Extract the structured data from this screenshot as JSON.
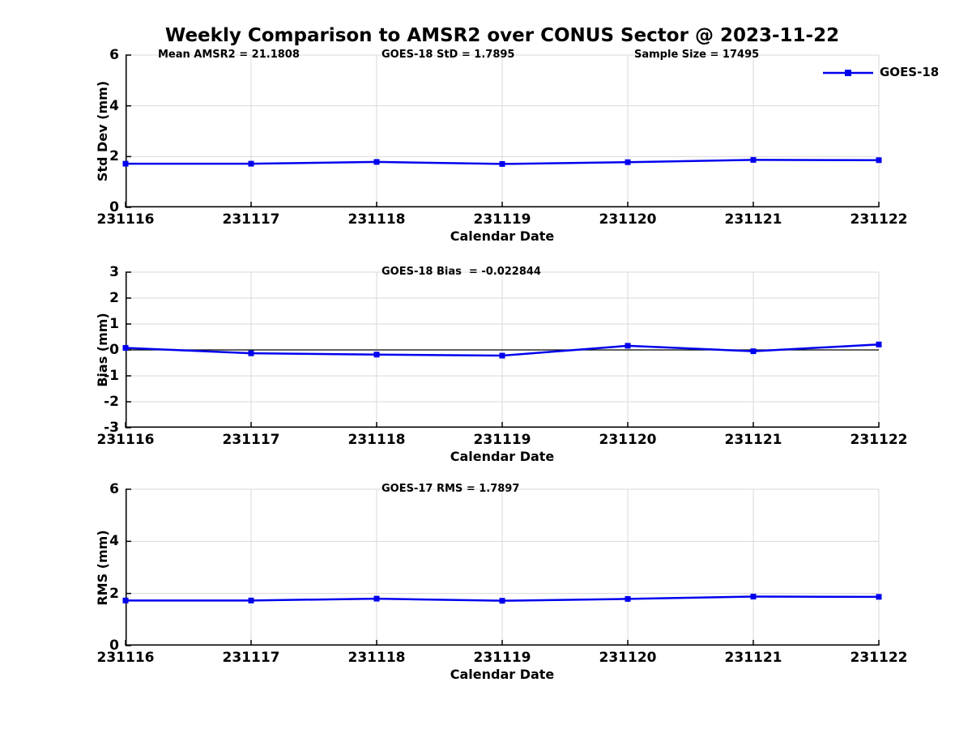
{
  "title": "Weekly Comparison to AMSR2 over CONUS Sector @ 2023-11-22",
  "legend": {
    "label": "GOES-18"
  },
  "colors": {
    "line": "#0000ee",
    "grid": "#d9d9d9",
    "axis": "#000000",
    "text": "#000000"
  },
  "chart_data": [
    {
      "type": "line",
      "name": "std-dev-subplot",
      "x": [
        "231116",
        "231117",
        "231118",
        "231119",
        "231120",
        "231121",
        "231122"
      ],
      "series": [
        {
          "name": "GOES-18",
          "values": [
            1.72,
            1.72,
            1.79,
            1.71,
            1.78,
            1.87,
            1.86
          ]
        }
      ],
      "ylabel": "Std Dev (mm)",
      "xlabel": "Calendar Date",
      "ylim": [
        0,
        6
      ],
      "yticks": [
        0,
        2,
        4,
        6
      ],
      "grid": true,
      "zero_line": false,
      "legend_position": "top-right",
      "annotations": [
        "Mean AMSR2 = 21.1808",
        "GOES-18 StD = 1.7895",
        "Sample Size = 17495"
      ]
    },
    {
      "type": "line",
      "name": "bias-subplot",
      "x": [
        "231116",
        "231117",
        "231118",
        "231119",
        "231120",
        "231121",
        "231122"
      ],
      "series": [
        {
          "name": "GOES-18",
          "values": [
            0.08,
            -0.13,
            -0.18,
            -0.22,
            0.16,
            -0.05,
            0.21
          ]
        }
      ],
      "ylabel": "Bias (mm)",
      "xlabel": "Calendar Date",
      "ylim": [
        -3,
        3
      ],
      "yticks": [
        -3,
        -2,
        -1,
        0,
        1,
        2,
        3
      ],
      "grid": true,
      "zero_line": true,
      "annotations": [
        "GOES-18 Bias  = -0.022844"
      ]
    },
    {
      "type": "line",
      "name": "rms-subplot",
      "x": [
        "231116",
        "231117",
        "231118",
        "231119",
        "231120",
        "231121",
        "231122"
      ],
      "series": [
        {
          "name": "GOES-18",
          "values": [
            1.73,
            1.73,
            1.8,
            1.72,
            1.79,
            1.88,
            1.87
          ]
        }
      ],
      "ylabel": "RMS (mm)",
      "xlabel": "Calendar Date",
      "ylim": [
        0,
        6
      ],
      "yticks": [
        0,
        2,
        4,
        6
      ],
      "grid": true,
      "zero_line": false,
      "annotations": [
        "GOES-17 RMS = 1.7897"
      ]
    }
  ]
}
